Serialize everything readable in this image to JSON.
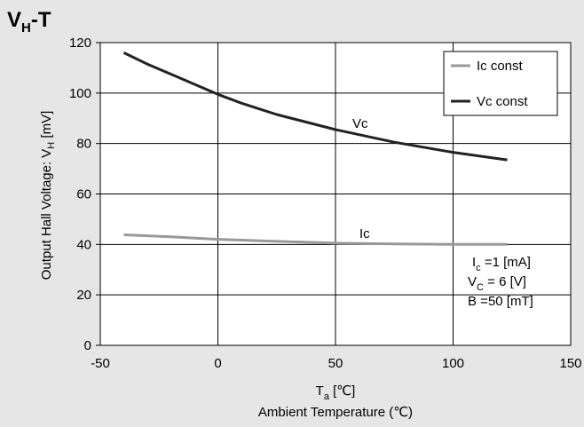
{
  "title": {
    "main": "V",
    "sub": "H",
    "suffix": "-T"
  },
  "y_axis_label": {
    "prefix": "Output Hall Voltage: V",
    "sub": "H",
    "suffix": " [mV]"
  },
  "x_axis_label": {
    "symbol": "T",
    "sub": "a",
    "unit": " [℃]",
    "name": "Ambient Temperature (℃)"
  },
  "legend": [
    {
      "name": "Ic const",
      "color": "#999999"
    },
    {
      "name": "Vc const",
      "color": "#222222"
    }
  ],
  "annotations": {
    "vc_label": "Vc",
    "ic_label": "Ic"
  },
  "conditions": [
    {
      "symbol": "I",
      "sub": "c",
      "value": " =1 [mA]"
    },
    {
      "symbol": "V",
      "sub": "C",
      "value": " = 6  [V]"
    },
    {
      "symbol": "B",
      "sub": "",
      "value": "  =50 [mT]"
    }
  ],
  "chart_data": {
    "type": "line",
    "xlim": [
      -50,
      150
    ],
    "ylim": [
      0,
      120
    ],
    "x_ticks": [
      -50,
      0,
      50,
      100,
      150
    ],
    "y_ticks": [
      0,
      20,
      40,
      60,
      80,
      100,
      120
    ],
    "grid": true,
    "legend_position": "top-right",
    "series": [
      {
        "name": "Ic const",
        "color": "#999999",
        "x": [
          -40,
          -20,
          0,
          25,
          50,
          75,
          100,
          123
        ],
        "y": [
          43.8,
          43,
          42,
          41.2,
          40.5,
          40.2,
          40,
          40
        ]
      },
      {
        "name": "Vc const",
        "color": "#222222",
        "x": [
          -40,
          -30,
          -20,
          -10,
          0,
          10,
          25,
          50,
          75,
          100,
          123
        ],
        "y": [
          116,
          111.5,
          107.5,
          103.5,
          99.5,
          96,
          91.5,
          85.5,
          80.5,
          76.5,
          73.5
        ]
      }
    ]
  }
}
